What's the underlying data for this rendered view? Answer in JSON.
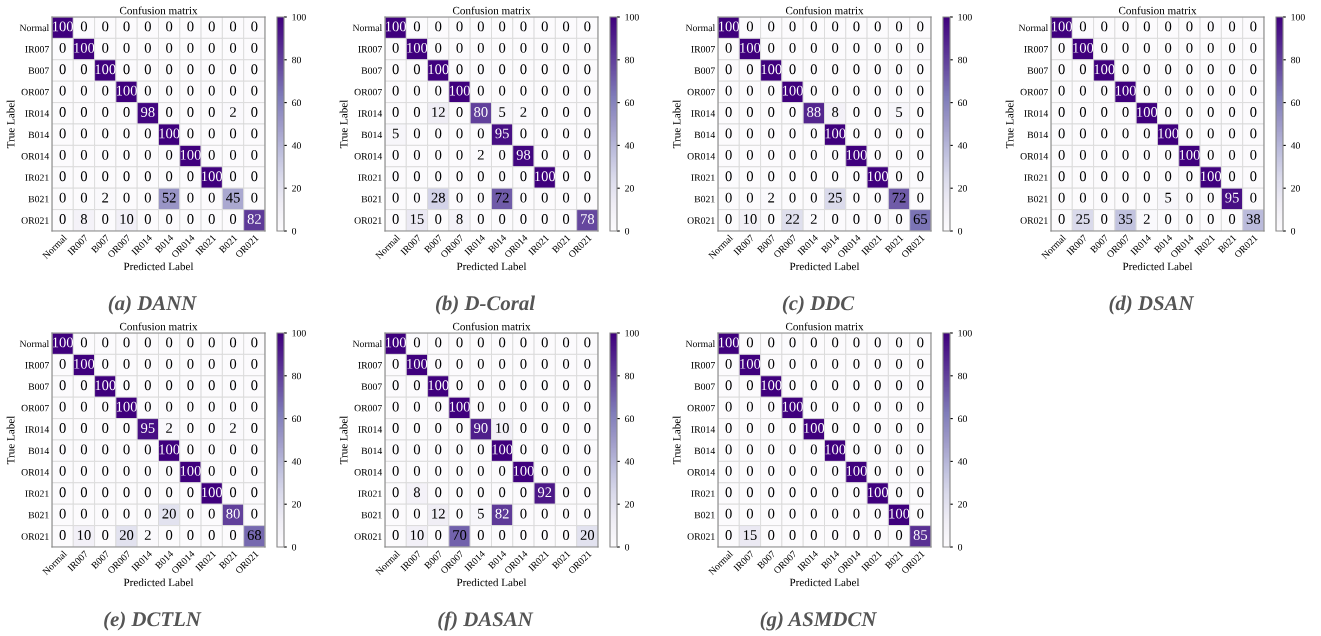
{
  "chart_data": [
    {
      "type": "heatmap",
      "title": "Confusion matrix",
      "xlabel": "Predicted Label",
      "ylabel": "True Label",
      "annotations": [
        "(a) DANN"
      ],
      "categories": [
        "Normal",
        "IR007",
        "B007",
        "OR007",
        "IR014",
        "B014",
        "OR014",
        "IR021",
        "B021",
        "OR021"
      ],
      "y_categories": [
        "Normal",
        "IR007",
        "B007",
        "OR007",
        "IR014",
        "B014",
        "OR014",
        "IR021",
        "B021",
        "OR021"
      ],
      "cells": [
        [
          100,
          0,
          0,
          0,
          0,
          0,
          0,
          0,
          0,
          0
        ],
        [
          0,
          100,
          0,
          0,
          0,
          0,
          0,
          0,
          0,
          0
        ],
        [
          0,
          0,
          100,
          0,
          0,
          0,
          0,
          0,
          0,
          0
        ],
        [
          0,
          0,
          0,
          100,
          0,
          0,
          0,
          0,
          0,
          0
        ],
        [
          0,
          0,
          0,
          0,
          98,
          0,
          0,
          0,
          2,
          0
        ],
        [
          0,
          0,
          0,
          0,
          0,
          100,
          0,
          0,
          0,
          0
        ],
        [
          0,
          0,
          0,
          0,
          0,
          0,
          100,
          0,
          0,
          0
        ],
        [
          0,
          0,
          0,
          0,
          0,
          0,
          0,
          100,
          0,
          0
        ],
        [
          0,
          0,
          2,
          0,
          0,
          52,
          0,
          0,
          45,
          0
        ],
        [
          0,
          8,
          0,
          10,
          0,
          0,
          0,
          0,
          0,
          82
        ]
      ],
      "clim": [
        0,
        100
      ],
      "cticks": [
        0,
        20,
        40,
        60,
        80,
        100
      ],
      "data_labels": true
    },
    {
      "type": "heatmap",
      "title": "Confusion matrix",
      "xlabel": "Predicted Label",
      "ylabel": "True Label",
      "annotations": [
        "(b) D-Coral"
      ],
      "categories": [
        "Normal",
        "IR007",
        "B007",
        "OR007",
        "IR014",
        "B014",
        "OR014",
        "IR021",
        "B021",
        "OR021"
      ],
      "y_categories": [
        "Normal",
        "IR007",
        "B007",
        "OR007",
        "IR014",
        "B014",
        "OR014",
        "IR021",
        "B021",
        "OR021"
      ],
      "cells": [
        [
          100,
          0,
          0,
          0,
          0,
          0,
          0,
          0,
          0,
          0
        ],
        [
          0,
          100,
          0,
          0,
          0,
          0,
          0,
          0,
          0,
          0
        ],
        [
          0,
          0,
          100,
          0,
          0,
          0,
          0,
          0,
          0,
          0
        ],
        [
          0,
          0,
          0,
          100,
          0,
          0,
          0,
          0,
          0,
          0
        ],
        [
          0,
          0,
          12,
          0,
          80,
          5,
          2,
          0,
          0,
          0
        ],
        [
          5,
          0,
          0,
          0,
          0,
          95,
          0,
          0,
          0,
          0
        ],
        [
          0,
          0,
          0,
          0,
          2,
          0,
          98,
          0,
          0,
          0
        ],
        [
          0,
          0,
          0,
          0,
          0,
          0,
          0,
          100,
          0,
          0
        ],
        [
          0,
          0,
          28,
          0,
          0,
          72,
          0,
          0,
          0,
          0
        ],
        [
          0,
          15,
          0,
          8,
          0,
          0,
          0,
          0,
          0,
          78
        ]
      ],
      "clim": [
        0,
        100
      ],
      "cticks": [
        0,
        20,
        40,
        60,
        80,
        100
      ],
      "data_labels": true
    },
    {
      "type": "heatmap",
      "title": "Confusion matrix",
      "xlabel": "Predicted Label",
      "ylabel": "True Label",
      "annotations": [
        "(c) DDC"
      ],
      "categories": [
        "Normal",
        "IR007",
        "B007",
        "OR007",
        "IR014",
        "B014",
        "OR014",
        "IR021",
        "B021",
        "OR021"
      ],
      "y_categories": [
        "Normal",
        "IR007",
        "B007",
        "OR007",
        "IR014",
        "B014",
        "OR014",
        "IR021",
        "B021",
        "OR021"
      ],
      "cells": [
        [
          100,
          0,
          0,
          0,
          0,
          0,
          0,
          0,
          0,
          0
        ],
        [
          0,
          100,
          0,
          0,
          0,
          0,
          0,
          0,
          0,
          0
        ],
        [
          0,
          0,
          100,
          0,
          0,
          0,
          0,
          0,
          0,
          0
        ],
        [
          0,
          0,
          0,
          100,
          0,
          0,
          0,
          0,
          0,
          0
        ],
        [
          0,
          0,
          0,
          0,
          88,
          8,
          0,
          0,
          5,
          0
        ],
        [
          0,
          0,
          0,
          0,
          0,
          100,
          0,
          0,
          0,
          0
        ],
        [
          0,
          0,
          0,
          0,
          0,
          0,
          100,
          0,
          0,
          0
        ],
        [
          0,
          0,
          0,
          0,
          0,
          0,
          0,
          100,
          0,
          0
        ],
        [
          0,
          0,
          2,
          0,
          0,
          25,
          0,
          0,
          72,
          0
        ],
        [
          0,
          10,
          0,
          22,
          2,
          0,
          0,
          0,
          0,
          65
        ]
      ],
      "clim": [
        0,
        100
      ],
      "cticks": [
        0,
        20,
        40,
        60,
        80,
        100
      ],
      "data_labels": true
    },
    {
      "type": "heatmap",
      "title": "Confusion matrix",
      "xlabel": "Predicted Label",
      "ylabel": "True Label",
      "annotations": [
        "(d) DSAN"
      ],
      "categories": [
        "Normal",
        "IR007",
        "B007",
        "OR007",
        "IR014",
        "B014",
        "OR014",
        "IR021",
        "B021",
        "OR021"
      ],
      "y_categories": [
        "Normal",
        "IR007",
        "B007",
        "OR007",
        "IR014",
        "B014",
        "OR014",
        "IR021",
        "B021",
        "OR021"
      ],
      "cells": [
        [
          100,
          0,
          0,
          0,
          0,
          0,
          0,
          0,
          0,
          0
        ],
        [
          0,
          100,
          0,
          0,
          0,
          0,
          0,
          0,
          0,
          0
        ],
        [
          0,
          0,
          100,
          0,
          0,
          0,
          0,
          0,
          0,
          0
        ],
        [
          0,
          0,
          0,
          100,
          0,
          0,
          0,
          0,
          0,
          0
        ],
        [
          0,
          0,
          0,
          0,
          100,
          0,
          0,
          0,
          0,
          0
        ],
        [
          0,
          0,
          0,
          0,
          0,
          100,
          0,
          0,
          0,
          0
        ],
        [
          0,
          0,
          0,
          0,
          0,
          0,
          100,
          0,
          0,
          0
        ],
        [
          0,
          0,
          0,
          0,
          0,
          0,
          0,
          100,
          0,
          0
        ],
        [
          0,
          0,
          0,
          0,
          0,
          5,
          0,
          0,
          95,
          0
        ],
        [
          0,
          25,
          0,
          35,
          2,
          0,
          0,
          0,
          0,
          38
        ]
      ],
      "clim": [
        0,
        100
      ],
      "cticks": [
        0,
        20,
        40,
        60,
        80,
        100
      ],
      "data_labels": true
    },
    {
      "type": "heatmap",
      "title": "Confusion matrix",
      "xlabel": "Predicted Label",
      "ylabel": "True Label",
      "annotations": [
        "(e) DCTLN"
      ],
      "categories": [
        "Normal",
        "IR007",
        "B007",
        "OR007",
        "IR014",
        "B014",
        "OR014",
        "IR021",
        "B021",
        "OR021"
      ],
      "y_categories": [
        "Normal",
        "IR007",
        "B007",
        "OR007",
        "IR014",
        "B014",
        "OR014",
        "IR021",
        "B021",
        "OR021"
      ],
      "cells": [
        [
          100,
          0,
          0,
          0,
          0,
          0,
          0,
          0,
          0,
          0
        ],
        [
          0,
          100,
          0,
          0,
          0,
          0,
          0,
          0,
          0,
          0
        ],
        [
          0,
          0,
          100,
          0,
          0,
          0,
          0,
          0,
          0,
          0
        ],
        [
          0,
          0,
          0,
          100,
          0,
          0,
          0,
          0,
          0,
          0
        ],
        [
          0,
          0,
          0,
          0,
          95,
          2,
          0,
          0,
          2,
          0
        ],
        [
          0,
          0,
          0,
          0,
          0,
          100,
          0,
          0,
          0,
          0
        ],
        [
          0,
          0,
          0,
          0,
          0,
          0,
          100,
          0,
          0,
          0
        ],
        [
          0,
          0,
          0,
          0,
          0,
          0,
          0,
          100,
          0,
          0
        ],
        [
          0,
          0,
          0,
          0,
          0,
          20,
          0,
          0,
          80,
          0
        ],
        [
          0,
          10,
          0,
          20,
          2,
          0,
          0,
          0,
          0,
          68
        ]
      ],
      "clim": [
        0,
        100
      ],
      "cticks": [
        0,
        20,
        40,
        60,
        80,
        100
      ],
      "data_labels": true
    },
    {
      "type": "heatmap",
      "title": "Confusion matrix",
      "xlabel": "Predicted Label",
      "ylabel": "True Label",
      "annotations": [
        "(f) DASAN"
      ],
      "categories": [
        "Normal",
        "IR007",
        "B007",
        "OR007",
        "IR014",
        "B014",
        "OR014",
        "IR021",
        "B021",
        "OR021"
      ],
      "y_categories": [
        "Normal",
        "IR007",
        "B007",
        "OR007",
        "IR014",
        "B014",
        "OR014",
        "IR021",
        "B021",
        "OR021"
      ],
      "cells": [
        [
          100,
          0,
          0,
          0,
          0,
          0,
          0,
          0,
          0,
          0
        ],
        [
          0,
          100,
          0,
          0,
          0,
          0,
          0,
          0,
          0,
          0
        ],
        [
          0,
          0,
          100,
          0,
          0,
          0,
          0,
          0,
          0,
          0
        ],
        [
          0,
          0,
          0,
          100,
          0,
          0,
          0,
          0,
          0,
          0
        ],
        [
          0,
          0,
          0,
          0,
          90,
          10,
          0,
          0,
          0,
          0
        ],
        [
          0,
          0,
          0,
          0,
          0,
          100,
          0,
          0,
          0,
          0
        ],
        [
          0,
          0,
          0,
          0,
          0,
          0,
          100,
          0,
          0,
          0
        ],
        [
          0,
          8,
          0,
          0,
          0,
          0,
          0,
          92,
          0,
          0
        ],
        [
          0,
          0,
          12,
          0,
          5,
          82,
          0,
          0,
          0,
          0
        ],
        [
          0,
          10,
          0,
          70,
          0,
          0,
          0,
          0,
          0,
          20
        ]
      ],
      "clim": [
        0,
        100
      ],
      "cticks": [
        0,
        20,
        40,
        60,
        80,
        100
      ],
      "data_labels": true
    },
    {
      "type": "heatmap",
      "title": "Confusion matrix",
      "xlabel": "Predicted Label",
      "ylabel": "True Label",
      "annotations": [
        "(g) ASMDCN"
      ],
      "categories": [
        "Normal",
        "IR007",
        "B007",
        "OR007",
        "IR014",
        "B014",
        "OR014",
        "IR021",
        "B021",
        "OR021"
      ],
      "y_categories": [
        "Normal",
        "IR007",
        "B007",
        "OR007",
        "IR014",
        "B014",
        "OR014",
        "IR021",
        "B021",
        "OR021"
      ],
      "cells": [
        [
          100,
          0,
          0,
          0,
          0,
          0,
          0,
          0,
          0,
          0
        ],
        [
          0,
          100,
          0,
          0,
          0,
          0,
          0,
          0,
          0,
          0
        ],
        [
          0,
          0,
          100,
          0,
          0,
          0,
          0,
          0,
          0,
          0
        ],
        [
          0,
          0,
          0,
          100,
          0,
          0,
          0,
          0,
          0,
          0
        ],
        [
          0,
          0,
          0,
          0,
          100,
          0,
          0,
          0,
          0,
          0
        ],
        [
          0,
          0,
          0,
          0,
          0,
          100,
          0,
          0,
          0,
          0
        ],
        [
          0,
          0,
          0,
          0,
          0,
          0,
          100,
          0,
          0,
          0
        ],
        [
          0,
          0,
          0,
          0,
          0,
          0,
          0,
          100,
          0,
          0
        ],
        [
          0,
          0,
          0,
          0,
          0,
          0,
          0,
          0,
          100,
          0
        ],
        [
          0,
          15,
          0,
          0,
          0,
          0,
          0,
          0,
          0,
          85
        ]
      ],
      "clim": [
        0,
        100
      ],
      "cticks": [
        0,
        20,
        40,
        60,
        80,
        100
      ],
      "data_labels": true
    }
  ]
}
